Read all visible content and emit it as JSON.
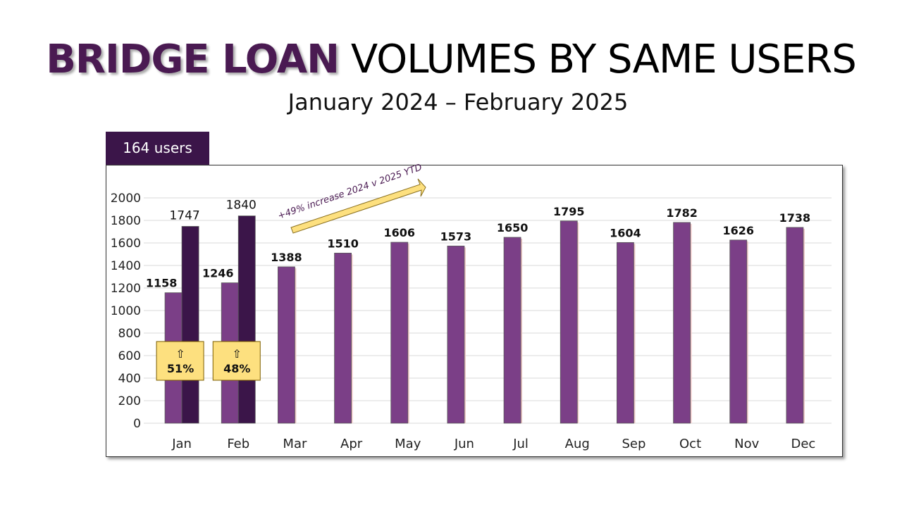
{
  "title": {
    "highlight": "BRIDGE LOAN",
    "rest": " VOLUMES BY SAME USERS"
  },
  "subtitle": "January 2024 – February 2025",
  "badge": "164 users",
  "chart_data": {
    "type": "bar",
    "categories": [
      "Jan",
      "Feb",
      "Mar",
      "Apr",
      "May",
      "Jun",
      "Jul",
      "Aug",
      "Sep",
      "Oct",
      "Nov",
      "Dec"
    ],
    "series": [
      {
        "values": [
          1158,
          1246,
          1388,
          1510,
          1606,
          1573,
          1650,
          1795,
          1604,
          1782,
          1626,
          1738
        ],
        "color": "#7b3f87"
      },
      {
        "values": [
          1747,
          1840,
          null,
          null,
          null,
          null,
          null,
          null,
          null,
          null,
          null,
          null
        ],
        "color": "#3b1549"
      }
    ],
    "ylim": [
      0,
      2000
    ],
    "yticks": [
      0,
      200,
      400,
      600,
      800,
      1000,
      1200,
      1400,
      1600,
      1800,
      2000
    ],
    "grid": true,
    "annotations": {
      "growth_boxes": [
        {
          "category": "Jan",
          "arrow": "⇧",
          "text": "51%"
        },
        {
          "category": "Feb",
          "arrow": "⇧",
          "text": "48%"
        }
      ],
      "trend_arrow": "+49% increase 2024 v 2025 YTD",
      "box_color": "#fde07f"
    }
  }
}
